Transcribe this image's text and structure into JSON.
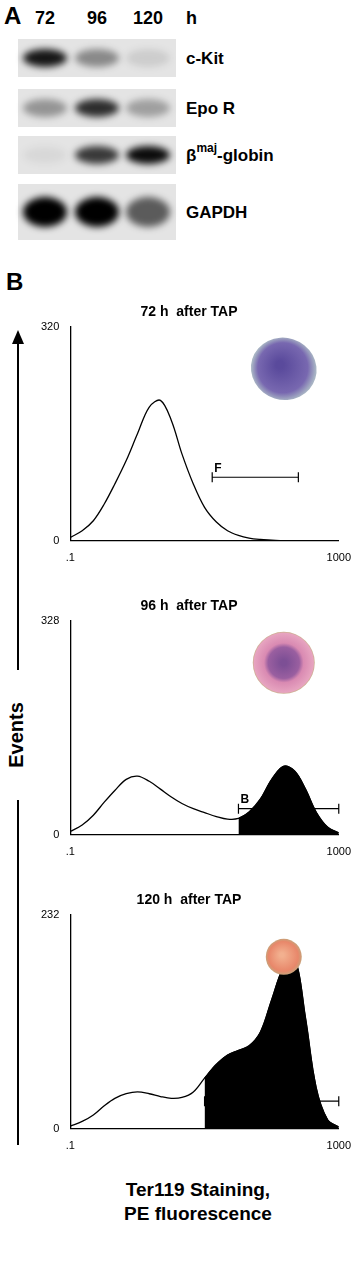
{
  "figure": {
    "panel_a": {
      "label": "A",
      "columns": [
        "72",
        "96",
        "120"
      ],
      "unit": "h",
      "rows": [
        {
          "name": "c-Kit",
          "intensity": [
            0.9,
            0.4,
            0.1
          ]
        },
        {
          "name": "Epo R",
          "intensity": [
            0.35,
            0.8,
            0.3
          ]
        },
        {
          "name": "β",
          "sup": "maj",
          "after": "-globin",
          "intensity": [
            0.05,
            0.75,
            0.95
          ]
        },
        {
          "name": "GAPDH",
          "intensity": [
            1,
            1,
            0.6
          ]
        }
      ]
    },
    "panel_b": {
      "label": "B",
      "y_axis_title": "Events",
      "x_axis_title": [
        "Ter119 Staining,",
        "PE fluorescence"
      ]
    }
  },
  "chart_data": [
    {
      "type": "line",
      "title": "72 h  after TAP",
      "log": "x",
      "grid": false,
      "x": [
        0.1,
        0.15,
        0.22,
        0.32,
        0.46,
        0.68,
        1,
        1.5,
        2.2,
        3.2,
        4.6,
        6.8,
        10,
        15,
        22,
        32,
        46,
        68,
        100,
        150,
        220,
        320,
        460,
        680,
        1000
      ],
      "series": [
        {
          "type": "line",
          "color": "#000000",
          "values": [
            5,
            15,
            30,
            55,
            85,
            120,
            160,
            200,
            210,
            180,
            130,
            85,
            50,
            28,
            15,
            8,
            4,
            2,
            1,
            0,
            0,
            0,
            0,
            0,
            0
          ]
        }
      ],
      "gates": [
        {
          "label": "F",
          "x": [
            13,
            250
          ],
          "y": 95
        }
      ],
      "xlim": [
        0.1,
        1000
      ],
      "xticks": [
        {
          "value": 0.1,
          "label": ".1"
        },
        1000
      ],
      "ylim": [
        0,
        320
      ],
      "yticks": [
        0,
        320
      ]
    },
    {
      "type": "line",
      "title": "96 h  after TAP",
      "log": "x",
      "grid": false,
      "x": [
        0.1,
        0.15,
        0.22,
        0.32,
        0.46,
        0.68,
        1,
        1.5,
        2.2,
        3.2,
        4.6,
        6.8,
        10,
        15,
        22,
        32,
        46,
        68,
        100,
        150,
        220,
        320,
        460,
        680,
        1000
      ],
      "series": [
        {
          "type": "line",
          "color": "#000000",
          "values": [
            5,
            15,
            30,
            50,
            68,
            85,
            90,
            82,
            70,
            58,
            48,
            40,
            34,
            28,
            24,
            25,
            35,
            55,
            85,
            105,
            98,
            70,
            35,
            12,
            3
          ]
        },
        {
          "type": "area",
          "color": "#000000",
          "values": [
            null,
            null,
            null,
            null,
            null,
            null,
            null,
            null,
            null,
            null,
            null,
            null,
            null,
            null,
            null,
            25,
            35,
            55,
            85,
            105,
            98,
            70,
            35,
            12,
            3
          ]
        }
      ],
      "gates": [
        {
          "label": "B",
          "x": [
            32,
            1000
          ],
          "y": 40
        }
      ],
      "xlim": [
        0.1,
        1000
      ],
      "xticks": [
        {
          "value": 0.1,
          "label": ".1"
        },
        1000
      ],
      "ylim": [
        0,
        328
      ],
      "yticks": [
        0,
        328
      ]
    },
    {
      "type": "line",
      "title": "120 h  after TAP",
      "log": "x",
      "grid": false,
      "x": [
        0.1,
        0.15,
        0.22,
        0.32,
        0.46,
        0.68,
        1,
        1.5,
        2.2,
        3.2,
        4.6,
        6.8,
        10,
        15,
        22,
        32,
        46,
        68,
        100,
        150,
        220,
        320,
        460,
        680,
        1000
      ],
      "series": [
        {
          "type": "line",
          "color": "#000000",
          "values": [
            3,
            8,
            15,
            25,
            33,
            38,
            40,
            38,
            35,
            33,
            34,
            40,
            55,
            70,
            80,
            85,
            90,
            105,
            140,
            175,
            185,
            120,
            45,
            10,
            2
          ]
        },
        {
          "type": "area",
          "color": "#000000",
          "values": [
            null,
            null,
            null,
            null,
            null,
            null,
            null,
            null,
            null,
            null,
            null,
            null,
            55,
            70,
            80,
            85,
            90,
            105,
            140,
            175,
            185,
            120,
            45,
            10,
            2
          ]
        }
      ],
      "gates": [
        {
          "x": [
            10,
            1000
          ],
          "y": 30
        }
      ],
      "xlim": [
        0.1,
        1000
      ],
      "xticks": [
        {
          "value": 0.1,
          "label": ".1"
        },
        1000
      ],
      "ylim": [
        0,
        232
      ],
      "yticks": [
        0,
        232
      ]
    }
  ]
}
